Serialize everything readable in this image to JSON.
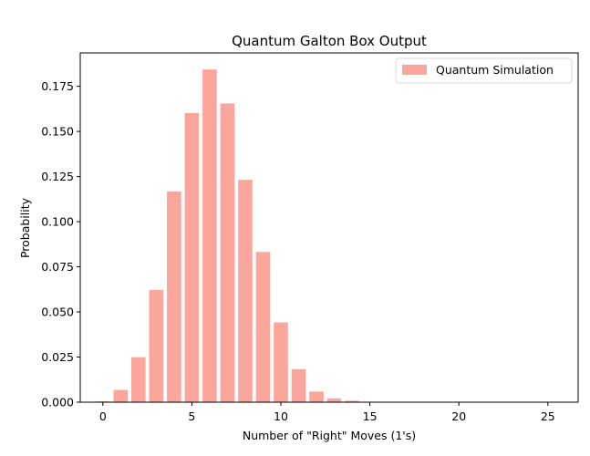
{
  "chart_data": {
    "type": "bar",
    "title": "Quantum Galton Box Output",
    "xlabel": "Number of \"Right\" Moves (1's)",
    "ylabel": "Probability",
    "x": [
      0,
      1,
      2,
      3,
      4,
      5,
      6,
      7,
      8,
      9,
      10,
      11,
      12,
      13,
      14,
      15
    ],
    "series": [
      {
        "name": "Quantum Simulation",
        "color": "#fa8072",
        "values": [
          0.0005,
          0.0068,
          0.0249,
          0.0622,
          0.1167,
          0.1602,
          0.1843,
          0.1655,
          0.1232,
          0.0832,
          0.0442,
          0.0183,
          0.0059,
          0.0021,
          0.0008,
          0.0002
        ]
      }
    ],
    "xlim": [
      -1.27,
      26.7
    ],
    "ylim": [
      0,
      0.1935
    ],
    "xticks": [
      0,
      5,
      10,
      15,
      20,
      25
    ],
    "yticks": [
      0.0,
      0.025,
      0.05,
      0.075,
      0.1,
      0.125,
      0.15,
      0.175
    ],
    "xtick_labels": [
      "0",
      "5",
      "10",
      "15",
      "20",
      "25"
    ],
    "ytick_labels": [
      "0.000",
      "0.025",
      "0.050",
      "0.075",
      "0.100",
      "0.125",
      "0.150",
      "0.175"
    ],
    "legend_position": "top-right",
    "bar_width": 0.8,
    "bar_alpha": 0.7,
    "grid": false
  }
}
